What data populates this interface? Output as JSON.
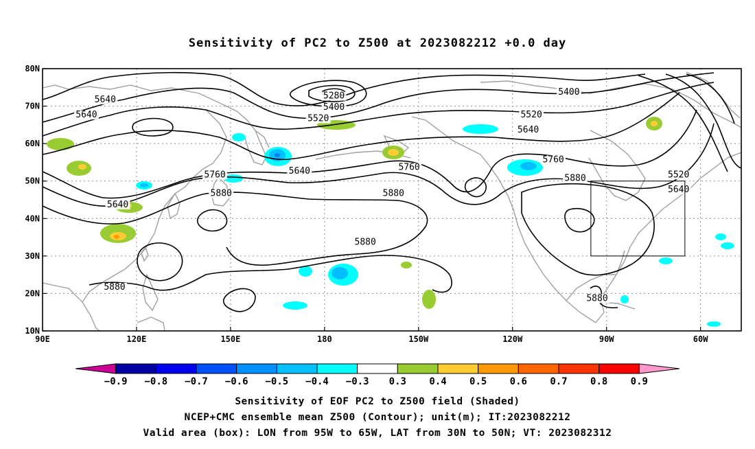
{
  "title": "Sensitivity of PC2 to Z500 at 2023082212 +0.0 day",
  "map": {
    "lon_ticks": [
      {
        "lon": 90,
        "label": "90E"
      },
      {
        "lon": 120,
        "label": "120E"
      },
      {
        "lon": 150,
        "label": "150E"
      },
      {
        "lon": 180,
        "label": "180"
      },
      {
        "lon": 210,
        "label": "150W"
      },
      {
        "lon": 240,
        "label": "120W"
      },
      {
        "lon": 270,
        "label": "90W"
      },
      {
        "lon": 300,
        "label": "60W"
      }
    ],
    "lat_ticks": [
      {
        "lat": 80,
        "label": "80N"
      },
      {
        "lat": 70,
        "label": "70N"
      },
      {
        "lat": 60,
        "label": "60N"
      },
      {
        "lat": 50,
        "label": "50N"
      },
      {
        "lat": 40,
        "label": "40N"
      },
      {
        "lat": 30,
        "label": "30N"
      },
      {
        "lat": 20,
        "label": "20N"
      },
      {
        "lat": 10,
        "label": "10N"
      }
    ],
    "lon_range": [
      90,
      313
    ],
    "lat_range": [
      10,
      80
    ],
    "grid": true,
    "contour_labels": [
      {
        "text": "5640",
        "lon": 110,
        "lat": 71
      },
      {
        "text": "5640",
        "lon": 104,
        "lat": 67
      },
      {
        "text": "5640",
        "lon": 114,
        "lat": 43
      },
      {
        "text": "5880",
        "lon": 113,
        "lat": 21
      },
      {
        "text": "5760",
        "lon": 145,
        "lat": 51
      },
      {
        "text": "5880",
        "lon": 147,
        "lat": 46
      },
      {
        "text": "5280",
        "lon": 183,
        "lat": 72
      },
      {
        "text": "5400",
        "lon": 183,
        "lat": 69
      },
      {
        "text": "5520",
        "lon": 178,
        "lat": 66
      },
      {
        "text": "5640",
        "lon": 172,
        "lat": 52
      },
      {
        "text": "5760",
        "lon": 207,
        "lat": 53
      },
      {
        "text": "5880",
        "lon": 202,
        "lat": 46
      },
      {
        "text": "5880",
        "lon": 193,
        "lat": 33
      },
      {
        "text": "5400",
        "lon": 258,
        "lat": 73
      },
      {
        "text": "5520",
        "lon": 246,
        "lat": 67
      },
      {
        "text": "5640",
        "lon": 245,
        "lat": 63
      },
      {
        "text": "5760",
        "lon": 253,
        "lat": 55
      },
      {
        "text": "5880",
        "lon": 260,
        "lat": 50
      },
      {
        "text": "5880",
        "lon": 267,
        "lat": 18
      },
      {
        "text": "5520",
        "lon": 293,
        "lat": 51
      },
      {
        "text": "5640",
        "lon": 293,
        "lat": 47
      }
    ],
    "valid_box": {
      "lon_min": 265,
      "lon_max": 295,
      "lat_min": 30,
      "lat_max": 50
    },
    "colors": {
      "contour": "#000000",
      "coast": "#a0a0a0",
      "grid": "#8c8c8c",
      "neg_05": "#00bfff",
      "neg_04": "#00ffff",
      "neg_06": "#0080ff",
      "pos_03": "#99cc33",
      "pos_04": "#ffcc33",
      "pos_05": "#ff9900"
    }
  },
  "colorbar": {
    "labels": [
      "−0.9",
      "−0.8",
      "−0.7",
      "−0.6",
      "−0.5",
      "−0.4",
      "−0.3",
      "0.3",
      "0.4",
      "0.5",
      "0.6",
      "0.7",
      "0.8",
      "0.9"
    ],
    "colors": [
      "#cc0099",
      "#0000a0",
      "#0000ee",
      "#0050ff",
      "#0090ff",
      "#00c0ff",
      "#00ffff",
      "#ffffff",
      "#99cc33",
      "#ffcc33",
      "#ff9900",
      "#ff6600",
      "#ff3300",
      "#ff0000",
      "#ff99cc"
    ]
  },
  "footer": {
    "line1": "Sensitivity of EOF PC2 to Z500 field (Shaded)",
    "line2": "NCEP+CMC ensemble mean Z500 (Contour); unit(m); IT:2023082212",
    "line3": "Valid area (box): LON from 95W to 65W, LAT from 30N to 50N; VT: 2023082312"
  }
}
